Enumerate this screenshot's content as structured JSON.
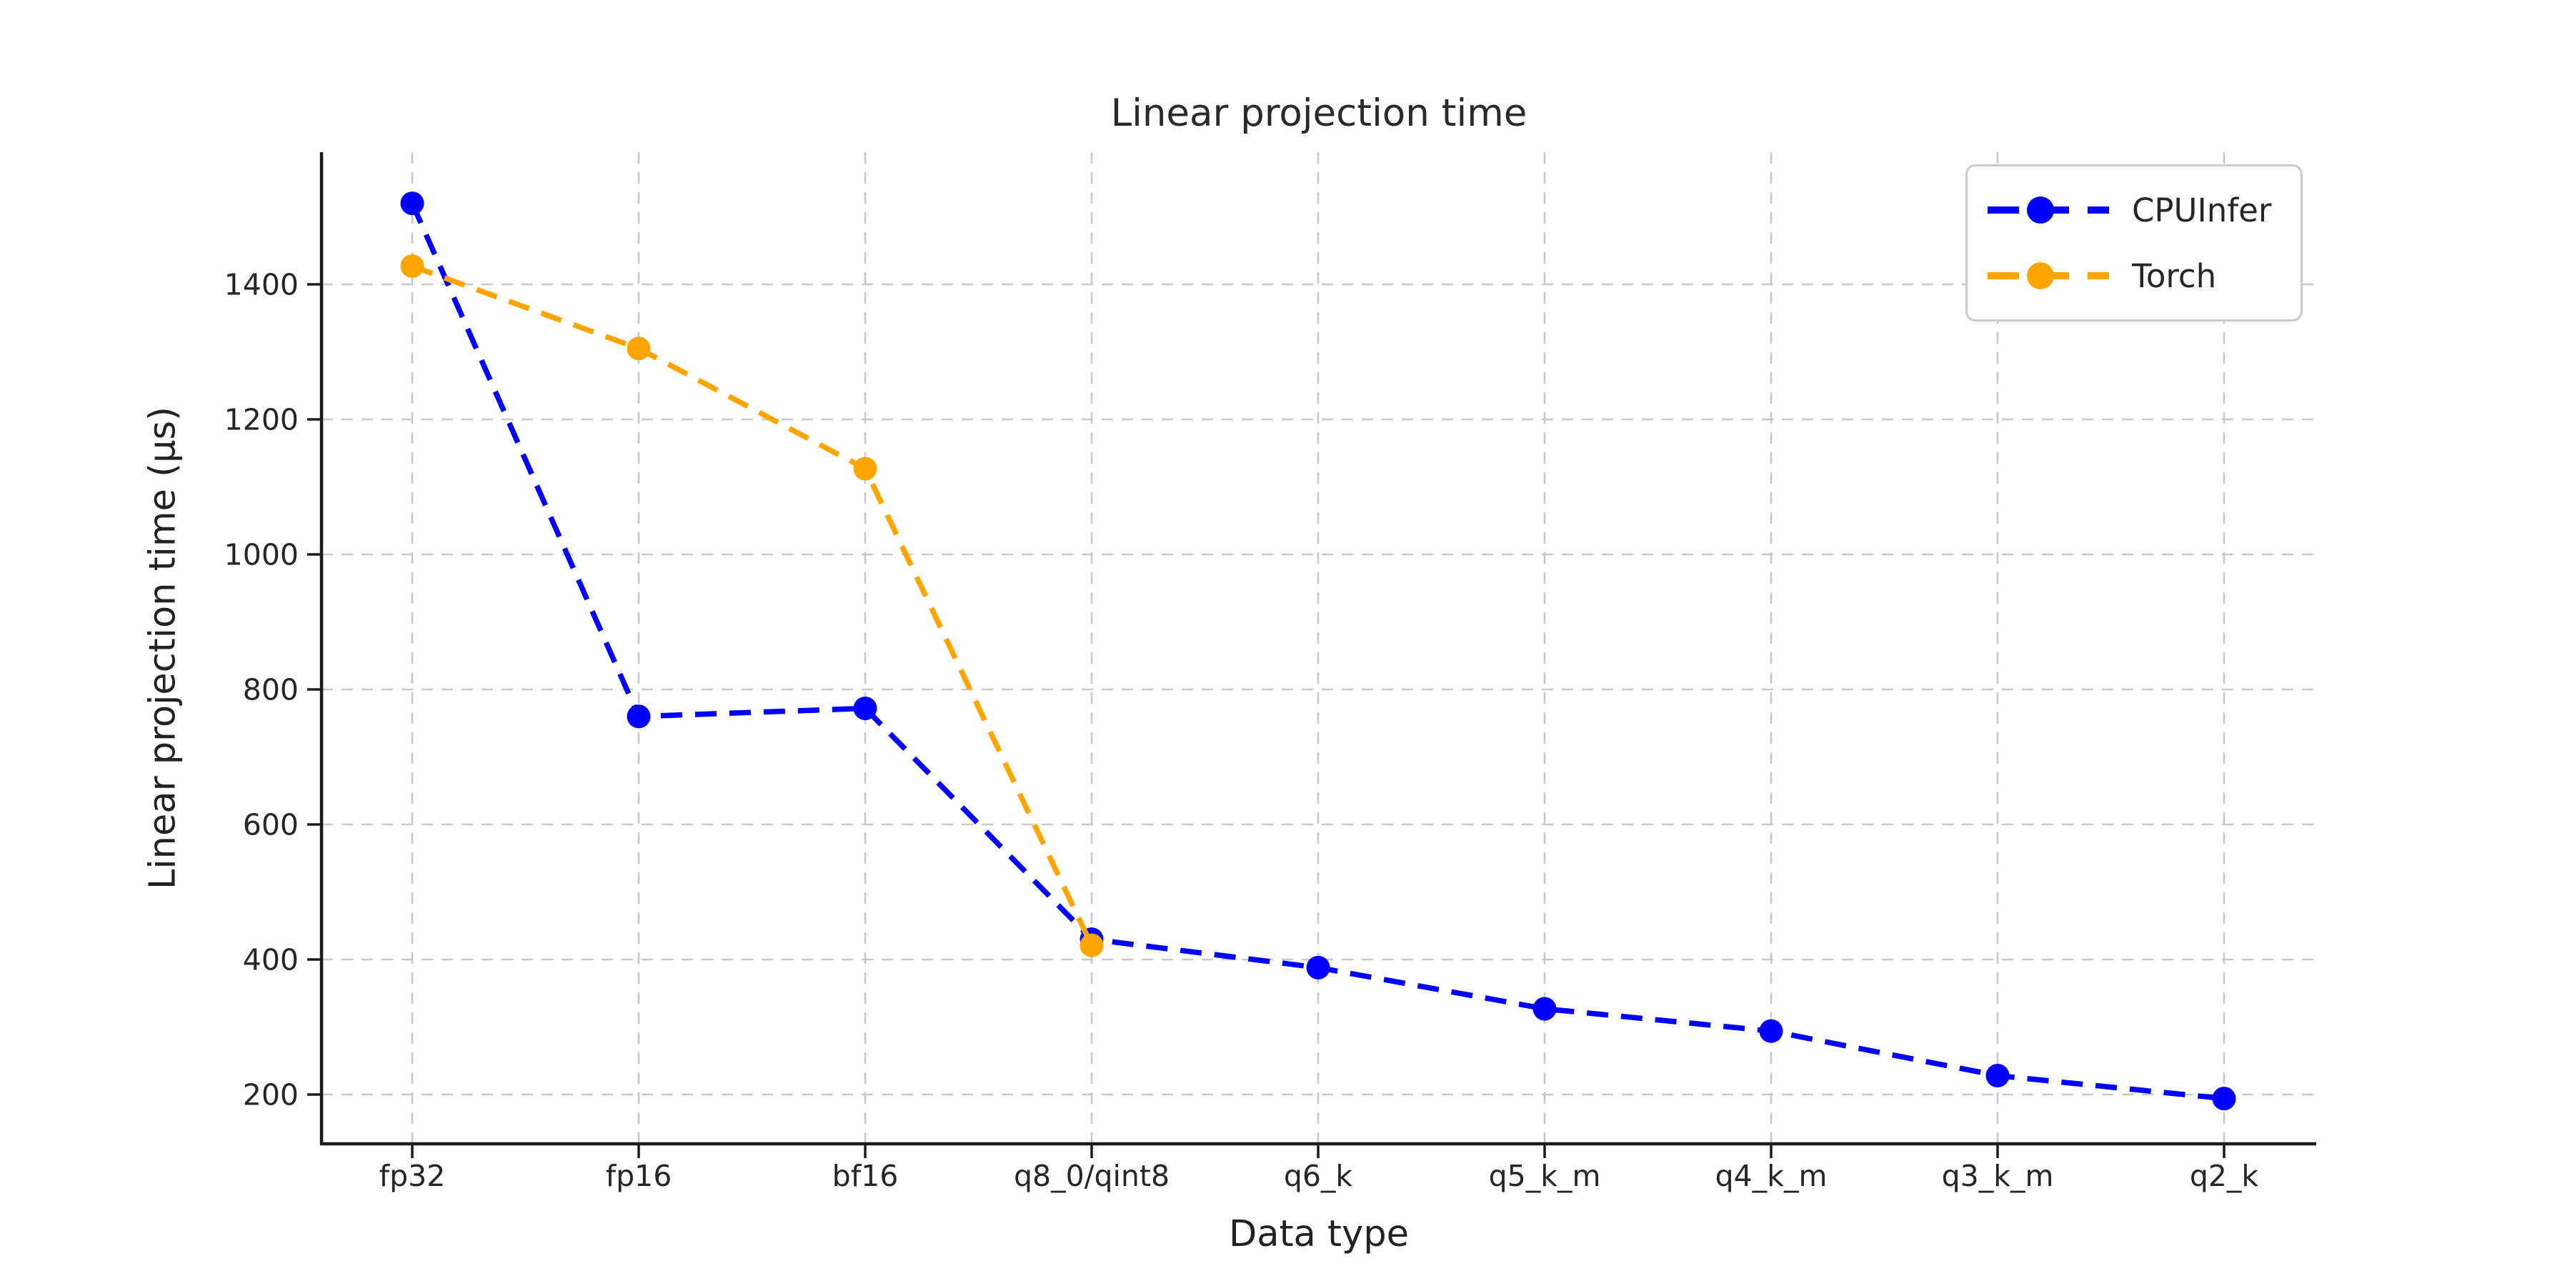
{
  "chart_data": {
    "type": "line",
    "title": "Linear projection time",
    "xlabel": "Data type",
    "ylabel": "Linear projection time (µs)",
    "categories": [
      "fp32",
      "fp16",
      "bf16",
      "q8_0/qint8",
      "q6_k",
      "q5_k_m",
      "q4_k_m",
      "q3_k_m",
      "q2_k"
    ],
    "series": [
      {
        "name": "CPUInfer",
        "color": "#0000ff",
        "values": [
          1520,
          760,
          772,
          430,
          388,
          327,
          294,
          228,
          194
        ]
      },
      {
        "name": "Torch",
        "color": "#ffa500",
        "values": [
          1427,
          1305,
          1127,
          421,
          null,
          null,
          null,
          null,
          null
        ]
      }
    ],
    "yticks": [
      200,
      400,
      600,
      800,
      1000,
      1200,
      1400
    ],
    "ylim": [
      127,
      1596
    ],
    "line_style": "dashed",
    "marker": "circle",
    "grid": "dashed-gray-both-axes",
    "legend_position": "upper right",
    "legend_entries": [
      "CPUInfer",
      "Torch"
    ]
  }
}
